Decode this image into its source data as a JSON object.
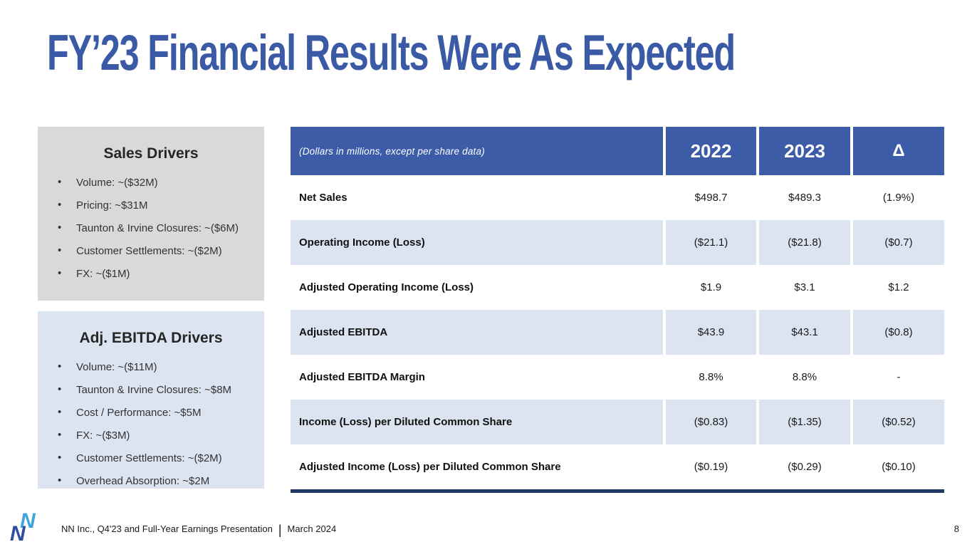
{
  "title": "FY’23 Financial Results Were As Expected",
  "sales_drivers": {
    "heading": "Sales Drivers",
    "items": [
      "Volume: ~($32M)",
      "Pricing: ~$31M",
      "Taunton & Irvine Closures: ~($6M)",
      "Customer Settlements: ~($2M)",
      "FX: ~($1M)"
    ]
  },
  "ebitda_drivers": {
    "heading": "Adj. EBITDA Drivers",
    "items": [
      "Volume: ~($11M)",
      "Taunton & Irvine Closures: ~$8M",
      "Cost / Performance: ~$5M",
      "FX: ~($3M)",
      "Customer Settlements: ~($2M)",
      "Overhead Absorption: ~$2M"
    ]
  },
  "table": {
    "note": "(Dollars in millions, except per share data)",
    "columns": [
      "2022",
      "2023",
      "Δ"
    ],
    "rows": [
      {
        "label": "Net Sales",
        "values": [
          "$498.7",
          "$489.3",
          "(1.9%)"
        ]
      },
      {
        "label": "Operating Income (Loss)",
        "values": [
          "($21.1)",
          "($21.8)",
          "($0.7)"
        ]
      },
      {
        "label": "Adjusted Operating Income (Loss)",
        "values": [
          "$1.9",
          "$3.1",
          "$1.2"
        ]
      },
      {
        "label": "Adjusted EBITDA",
        "values": [
          "$43.9",
          "$43.1",
          "($0.8)"
        ]
      },
      {
        "label": "Adjusted EBITDA Margin",
        "values": [
          "8.8%",
          "8.8%",
          "-"
        ]
      },
      {
        "label": "Income (Loss) per Diluted Common Share",
        "values": [
          "($0.83)",
          "($1.35)",
          "($0.52)"
        ]
      },
      {
        "label": "Adjusted Income (Loss) per Diluted Common Share",
        "values": [
          "($0.19)",
          "($0.29)",
          "($0.10)"
        ]
      }
    ]
  },
  "footer": {
    "text": "NN Inc., Q4'23 and Full-Year Earnings Presentation",
    "separator": "|",
    "date": "March 2024",
    "page": "8"
  },
  "colors": {
    "title_blue": "#3b5aa6",
    "header_blue": "#3c5ca8",
    "row_blue": "#dce4f2",
    "box_gray": "#d9d9d9",
    "navy_line": "#1f3864",
    "logo_light_blue": "#41a5dd",
    "logo_dark_blue": "#2d4f9e"
  }
}
